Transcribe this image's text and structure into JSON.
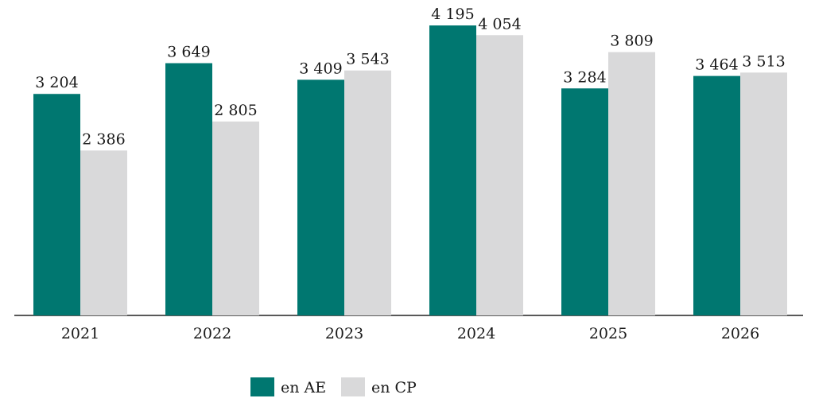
{
  "chart_data": {
    "type": "bar",
    "categories": [
      "2021",
      "2022",
      "2023",
      "2024",
      "2025",
      "2026"
    ],
    "series": [
      {
        "name": "en AE",
        "values": [
          3204,
          3649,
          3409,
          4195,
          3284,
          3464
        ],
        "value_labels": [
          "3 204",
          "3 649",
          "3 409",
          "4 195",
          "3 284",
          "3 464"
        ],
        "color": "#007770"
      },
      {
        "name": "en CP",
        "values": [
          2386,
          2805,
          3543,
          4054,
          3809,
          3513
        ],
        "value_labels": [
          "2 386",
          "2 805",
          "3 543",
          "4 054",
          "3 809",
          "3 513"
        ],
        "color": "#d9d9da"
      }
    ],
    "ylim": [
      0,
      4195
    ],
    "grid": false,
    "legend_position": "bottom-center"
  }
}
